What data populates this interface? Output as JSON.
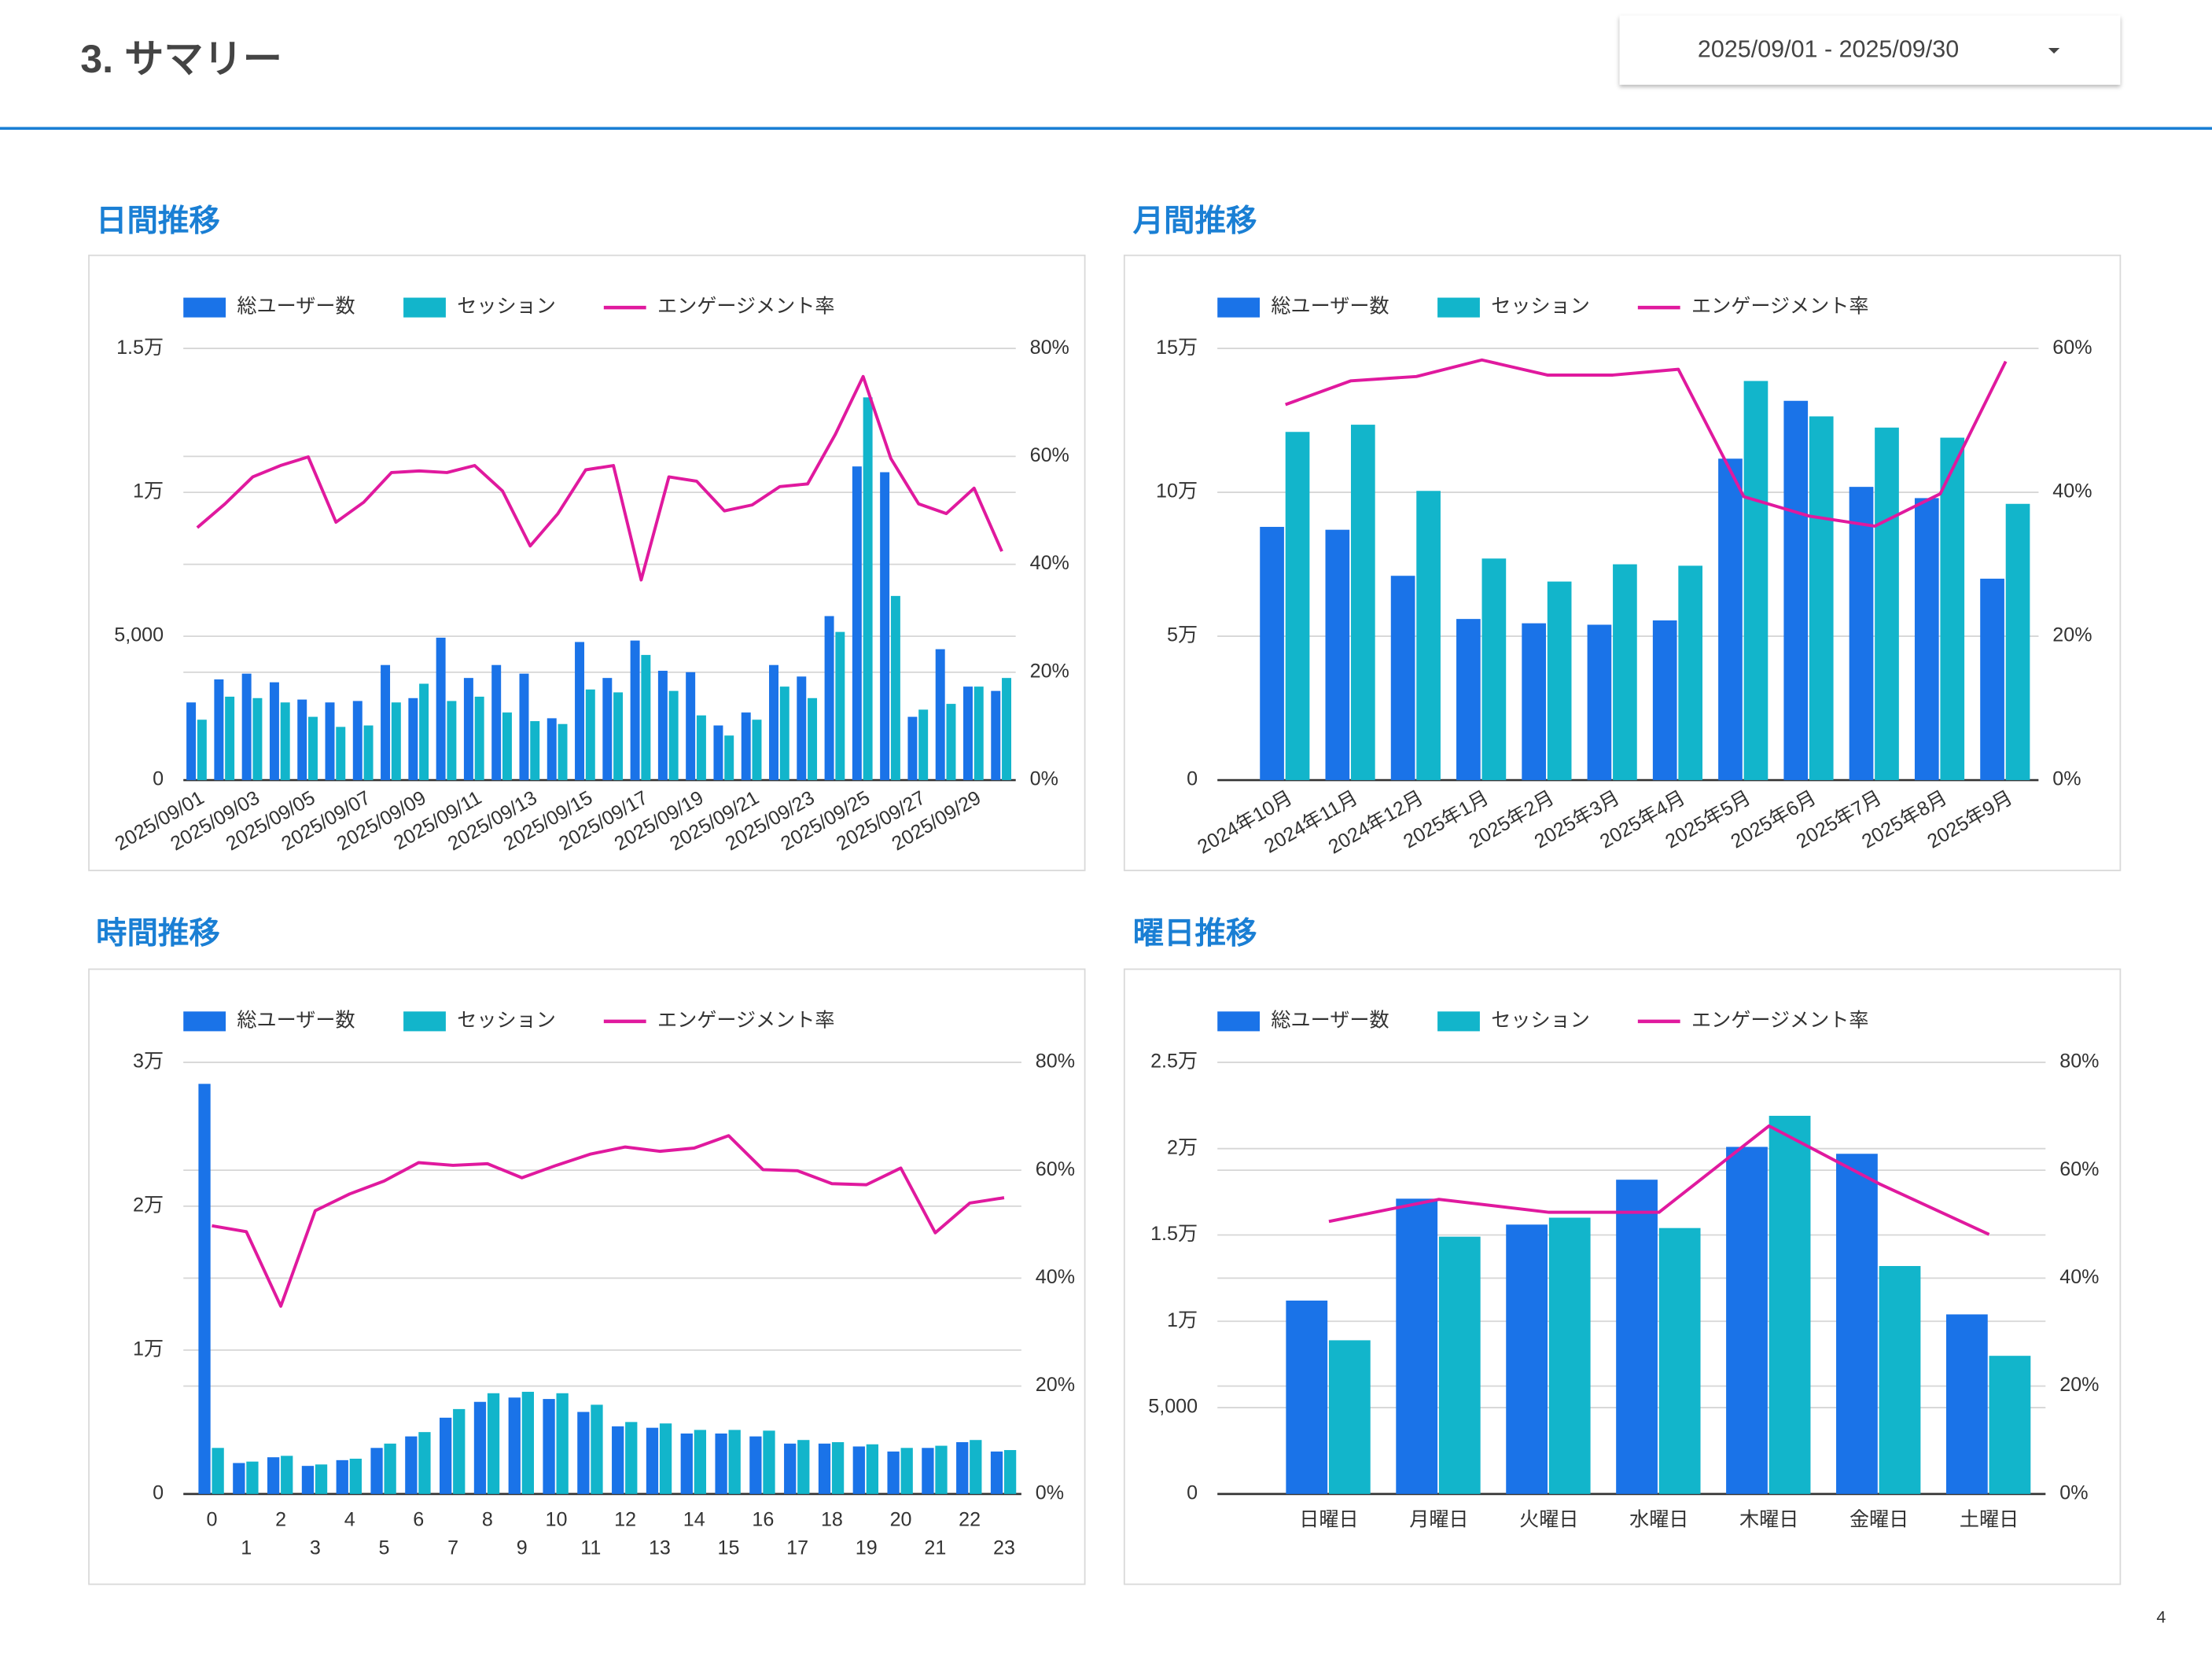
{
  "header": {
    "title": "3. サマリー",
    "date_range": "2025/09/01 - 2025/09/30",
    "page_number": "4"
  },
  "chart_data": [
    {
      "type": "combo",
      "title": "日間推移",
      "categories": [
        "2025/09/01",
        null,
        "2025/09/03",
        null,
        "2025/09/05",
        null,
        "2025/09/07",
        null,
        "2025/09/09",
        null,
        "2025/09/11",
        null,
        "2025/09/13",
        null,
        "2025/09/15",
        null,
        "2025/09/17",
        null,
        "2025/09/19",
        null,
        "2025/09/21",
        null,
        "2025/09/23",
        null,
        "2025/09/25",
        null,
        "2025/09/27",
        null,
        "2025/09/29",
        null
      ],
      "series": [
        {
          "name": "総ユーザー数",
          "type": "bar",
          "color": "#1a73e8",
          "values": [
            2700,
            3500,
            3700,
            3400,
            2800,
            2700,
            2750,
            4000,
            2850,
            4950,
            3550,
            4000,
            3700,
            2150,
            4800,
            3550,
            4850,
            3800,
            3750,
            1900,
            2350,
            4000,
            3600,
            5700,
            10900,
            10700,
            2200,
            4550,
            3250,
            3100
          ]
        },
        {
          "name": "セッション",
          "type": "bar",
          "color": "#12b5cb",
          "values": [
            2100,
            2900,
            2850,
            2700,
            2200,
            1850,
            1900,
            2700,
            3350,
            2750,
            2900,
            2350,
            2050,
            1950,
            3150,
            3050,
            4350,
            3100,
            2250,
            1550,
            2100,
            3250,
            2850,
            5150,
            13300,
            6400,
            2450,
            2650,
            3250,
            3550
          ]
        },
        {
          "name": "エンゲージメント率",
          "type": "line",
          "axis": "y2",
          "color": "#e0199e",
          "values": [
            46.8,
            51.2,
            56.2,
            58.3,
            59.9,
            47.8,
            51.5,
            57.0,
            57.3,
            57.0,
            58.3,
            53.6,
            43.4,
            49.4,
            57.5,
            58.3,
            37.1,
            56.2,
            55.4,
            49.9,
            51.0,
            54.4,
            54.9,
            64.1,
            74.8,
            59.6,
            51.2,
            49.4,
            54.1,
            42.4
          ]
        }
      ],
      "ylim": [
        0,
        15000
      ],
      "yticks": [
        0,
        {
          "value": 5000,
          "label": "5,000"
        },
        {
          "value": 10000,
          "label": "1万"
        },
        {
          "value": 15000,
          "label": "1.5万"
        }
      ],
      "y2lim": [
        0,
        80
      ],
      "y2ticks": [
        {
          "value": 0,
          "label": "0%"
        },
        {
          "value": 20,
          "label": "20%"
        },
        {
          "value": 40,
          "label": "40%"
        },
        {
          "value": 60,
          "label": "60%"
        },
        {
          "value": 80,
          "label": "80%"
        }
      ],
      "grid": true,
      "legend": "top"
    },
    {
      "type": "combo",
      "title": "月間推移",
      "categories": [
        "2024年10月",
        "2024年11月",
        "2024年12月",
        "2025年1月",
        "2025年2月",
        "2025年3月",
        "2025年4月",
        "2025年5月",
        "2025年6月",
        "2025年7月",
        "2025年8月",
        "2025年9月"
      ],
      "series": [
        {
          "name": "総ユーザー数",
          "type": "bar",
          "color": "#1a73e8",
          "values": [
            88000,
            87000,
            71000,
            56000,
            54500,
            54000,
            55500,
            111700,
            131800,
            101900,
            98000,
            70000
          ]
        },
        {
          "name": "セッション",
          "type": "bar",
          "color": "#12b5cb",
          "values": [
            121000,
            123500,
            100500,
            77000,
            69000,
            75000,
            74500,
            138700,
            126400,
            122500,
            119000,
            96000
          ]
        },
        {
          "name": "エンゲージメント率",
          "type": "line",
          "axis": "y2",
          "color": "#e0199e",
          "values": [
            52.2,
            55.5,
            56.1,
            58.4,
            56.3,
            56.3,
            57.1,
            39.4,
            36.7,
            35.3,
            39.8,
            58.2
          ]
        }
      ],
      "ylim": [
        0,
        150000
      ],
      "yticks": [
        0,
        {
          "value": 50000,
          "label": "5万"
        },
        {
          "value": 100000,
          "label": "10万"
        },
        {
          "value": 150000,
          "label": "15万"
        }
      ],
      "y2lim": [
        0,
        60
      ],
      "y2ticks": [
        {
          "value": 0,
          "label": "0%"
        },
        {
          "value": 20,
          "label": "20%"
        },
        {
          "value": 40,
          "label": "40%"
        },
        {
          "value": 60,
          "label": "60%"
        }
      ],
      "grid": true,
      "legend": "top"
    },
    {
      "type": "combo",
      "title": "時間推移",
      "categories": [
        "0",
        "1",
        "2",
        "3",
        "4",
        "5",
        "6",
        "7",
        "8",
        "9",
        "10",
        "11",
        "12",
        "13",
        "14",
        "15",
        "16",
        "17",
        "18",
        "19",
        "20",
        "21",
        "22",
        "23"
      ],
      "series": [
        {
          "name": "総ユーザー数",
          "type": "bar",
          "color": "#1a73e8",
          "values": [
            28500,
            2150,
            2550,
            1950,
            2350,
            3200,
            4000,
            5300,
            6400,
            6700,
            6600,
            5700,
            4700,
            4600,
            4200,
            4200,
            4000,
            3500,
            3500,
            3300,
            2950,
            3200,
            3600,
            2950
          ]
        },
        {
          "name": "セッション",
          "type": "bar",
          "color": "#12b5cb",
          "values": [
            3200,
            2250,
            2650,
            2050,
            2450,
            3500,
            4300,
            5900,
            7000,
            7100,
            7000,
            6200,
            5000,
            4900,
            4450,
            4450,
            4400,
            3750,
            3600,
            3450,
            3200,
            3350,
            3750,
            3050
          ]
        },
        {
          "name": "エンゲージメント率",
          "type": "line",
          "axis": "y2",
          "color": "#e0199e",
          "values": [
            49.7,
            48.6,
            34.8,
            52.5,
            55.6,
            58.0,
            61.4,
            60.9,
            61.2,
            58.6,
            60.9,
            63.0,
            64.3,
            63.5,
            64.1,
            66.4,
            60.1,
            59.9,
            57.5,
            57.3,
            60.4,
            48.4,
            53.9,
            54.9
          ]
        }
      ],
      "ylim": [
        0,
        30000
      ],
      "yticks": [
        0,
        {
          "value": 10000,
          "label": "1万"
        },
        {
          "value": 20000,
          "label": "2万"
        },
        {
          "value": 30000,
          "label": "3万"
        }
      ],
      "y2lim": [
        0,
        80
      ],
      "y2ticks": [
        {
          "value": 0,
          "label": "0%"
        },
        {
          "value": 20,
          "label": "20%"
        },
        {
          "value": 40,
          "label": "40%"
        },
        {
          "value": 60,
          "label": "60%"
        },
        {
          "value": 80,
          "label": "80%"
        }
      ],
      "grid": true,
      "legend": "top"
    },
    {
      "type": "combo",
      "title": "曜日推移",
      "categories": [
        "日曜日",
        "月曜日",
        "火曜日",
        "水曜日",
        "木曜日",
        "金曜日",
        "土曜日"
      ],
      "series": [
        {
          "name": "総ユーザー数",
          "type": "bar",
          "color": "#1a73e8",
          "values": [
            11200,
            17100,
            15600,
            18200,
            20100,
            19700,
            10400
          ]
        },
        {
          "name": "セッション",
          "type": "bar",
          "color": "#12b5cb",
          "values": [
            8900,
            14900,
            16000,
            15400,
            21900,
            13200,
            8000
          ]
        },
        {
          "name": "エンゲージメント率",
          "type": "line",
          "axis": "y2",
          "color": "#e0199e",
          "values": [
            50.5,
            54.6,
            52.2,
            52.2,
            68.2,
            57.5,
            48.1
          ]
        }
      ],
      "ylim": [
        0,
        25000
      ],
      "yticks": [
        0,
        {
          "value": 5000,
          "label": "5,000"
        },
        {
          "value": 10000,
          "label": "1万"
        },
        {
          "value": 15000,
          "label": "1.5万"
        },
        {
          "value": 20000,
          "label": "2万"
        },
        {
          "value": 25000,
          "label": "2.5万"
        }
      ],
      "y2lim": [
        0,
        80
      ],
      "y2ticks": [
        {
          "value": 0,
          "label": "0%"
        },
        {
          "value": 20,
          "label": "20%"
        },
        {
          "value": 40,
          "label": "40%"
        },
        {
          "value": 60,
          "label": "60%"
        },
        {
          "value": 80,
          "label": "80%"
        }
      ],
      "grid": true,
      "legend": "top"
    }
  ]
}
